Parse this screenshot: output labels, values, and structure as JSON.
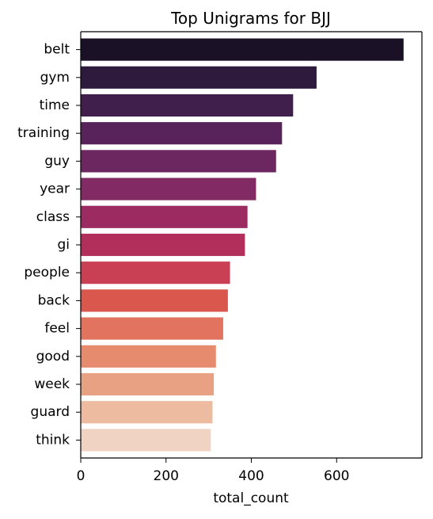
{
  "chart_data": {
    "type": "bar",
    "orientation": "horizontal",
    "title": "Top Unigrams for BJJ",
    "xlabel": "total_count",
    "ylabel": "",
    "categories": [
      "belt",
      "gym",
      "time",
      "training",
      "guy",
      "year",
      "class",
      "gi",
      "people",
      "back",
      "feel",
      "good",
      "week",
      "guard",
      "think"
    ],
    "values": [
      757,
      553,
      498,
      472,
      458,
      411,
      391,
      385,
      350,
      345,
      334,
      317,
      312,
      309,
      305
    ],
    "xlim": [
      0,
      800
    ],
    "xticks": [
      0,
      200,
      400,
      600
    ],
    "xtick_labels": [
      "0",
      "200",
      "400",
      "600"
    ],
    "grid": false,
    "legend": "none",
    "colors": [
      "#1b1127",
      "#2e1a3d",
      "#411f4d",
      "#57235a",
      "#6c2760",
      "#822a63",
      "#9b2b61",
      "#b22e5b",
      "#c93f53",
      "#d9574c",
      "#e2745f",
      "#e68b6d",
      "#e8a283",
      "#ecbba0",
      "#f1d3c3"
    ]
  }
}
